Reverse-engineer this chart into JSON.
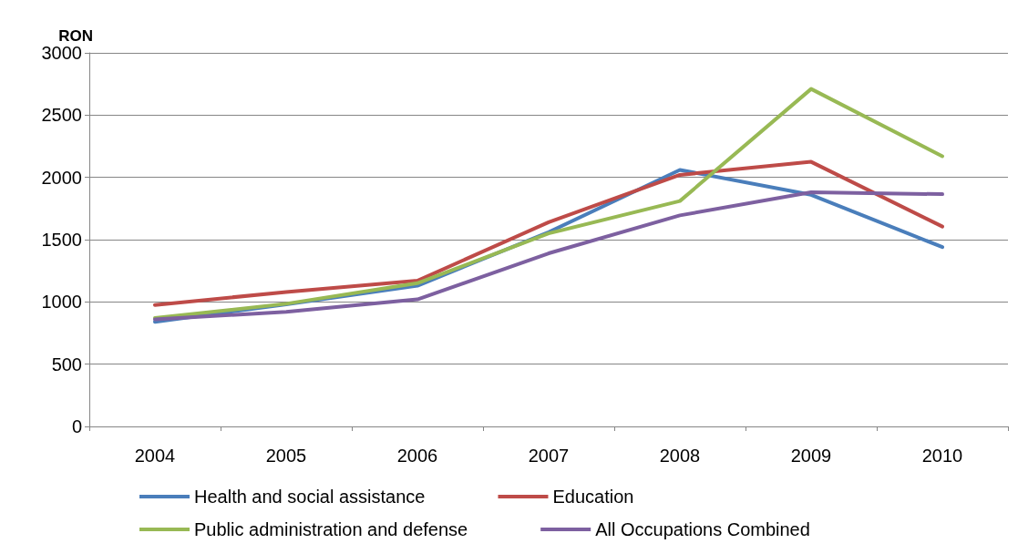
{
  "chart_data": {
    "type": "line",
    "ylabel": "RON",
    "categories": [
      "2004",
      "2005",
      "2006",
      "2007",
      "2008",
      "2009",
      "2010"
    ],
    "series": [
      {
        "name": "Health and social assistance",
        "color": "#4a7ebb",
        "values": [
          840,
          980,
          1130,
          1560,
          2060,
          1860,
          1440
        ]
      },
      {
        "name": "Education",
        "color": "#be4b48",
        "values": [
          975,
          1080,
          1170,
          1640,
          2020,
          2125,
          1605
        ]
      },
      {
        "name": "Public administration and defense",
        "color": "#98b954",
        "values": [
          870,
          985,
          1150,
          1550,
          1810,
          2710,
          2170
        ]
      },
      {
        "name": "All Occupations Combined",
        "color": "#7d60a0",
        "values": [
          860,
          920,
          1020,
          1390,
          1695,
          1880,
          1865
        ]
      }
    ],
    "ylim": [
      0,
      3000
    ],
    "yticks": [
      0,
      500,
      1000,
      1500,
      2000,
      2500,
      3000
    ],
    "grid": "y",
    "legend": "bottom",
    "marker": "none",
    "line_style": "solid"
  }
}
